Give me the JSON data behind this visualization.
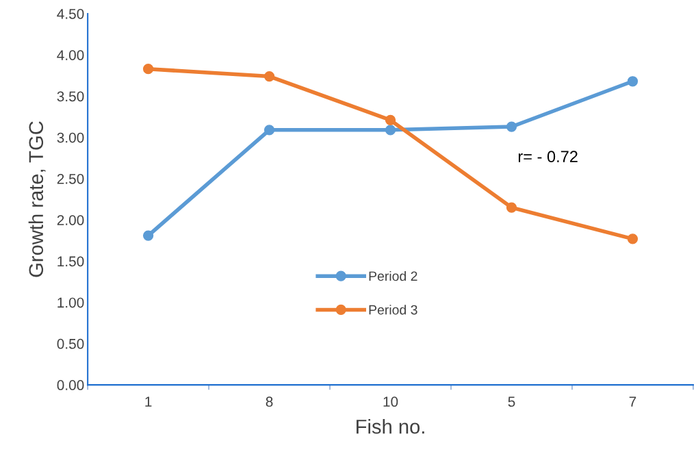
{
  "chart_data": {
    "type": "line",
    "xlabel": "Fish no.",
    "ylabel": "Growth rate, TGC",
    "categories": [
      "1",
      "8",
      "10",
      "5",
      "7"
    ],
    "series": [
      {
        "name": "Period 2",
        "color": "#5b9bd5",
        "values": [
          1.81,
          3.09,
          3.09,
          3.13,
          3.68
        ]
      },
      {
        "name": "Period 3",
        "color": "#ed7d31",
        "values": [
          3.83,
          3.74,
          3.21,
          2.15,
          1.77
        ]
      }
    ],
    "ylim": [
      0,
      4.5
    ],
    "yticks": [
      {
        "value": 0,
        "label": "0.00"
      },
      {
        "value": 0.5,
        "label": "0.50"
      },
      {
        "value": 1,
        "label": "1.00"
      },
      {
        "value": 1.5,
        "label": "1.50"
      },
      {
        "value": 2,
        "label": "2.00"
      },
      {
        "value": 2.5,
        "label": "2.50"
      },
      {
        "value": 3,
        "label": "3.00"
      },
      {
        "value": 3.5,
        "label": "3.50"
      },
      {
        "value": 4,
        "label": "4.00"
      },
      {
        "value": 4.5,
        "label": "4.50"
      }
    ],
    "annotations": [
      "r= - 0.72"
    ],
    "legend": "bottom",
    "grid": false,
    "marker": "circle",
    "line_style": "solid"
  }
}
